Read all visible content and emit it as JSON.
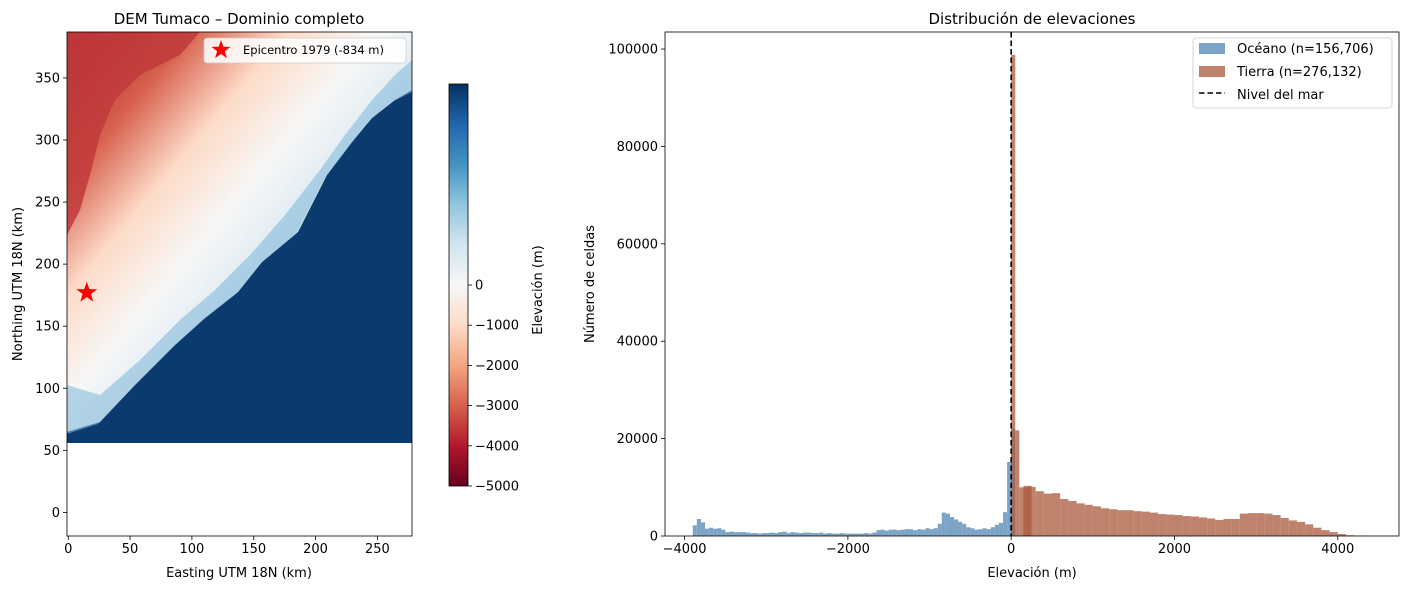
{
  "chart_data": [
    {
      "type": "heatmap",
      "title": "DEM Tumaco – Dominio completo",
      "xlabel": "Easting UTM 18N (km)",
      "ylabel": "Northing UTM 18N (km)",
      "xlim": [
        -1,
        278
      ],
      "ylim": [
        -19,
        387
      ],
      "x_ticks": [
        0,
        50,
        100,
        150,
        200,
        250
      ],
      "y_ticks": [
        0,
        50,
        100,
        150,
        200,
        250,
        300,
        350
      ],
      "data_extent": {
        "ymin": 56
      },
      "marker": {
        "label": "Epicentro 1979 (-834 m)",
        "x": 15,
        "y": 177,
        "color": "#ff0000"
      },
      "colorbar": {
        "label": "Elevación (m)",
        "vmin": -5000,
        "vmax": 5000,
        "ticks": [
          0,
          -1000,
          -2000,
          -3000,
          -4000,
          -5000
        ],
        "colormap": "RdBu",
        "stops": [
          "#67001f",
          "#b2182b",
          "#d6604d",
          "#f4a582",
          "#fddbc7",
          "#f7f7f7",
          "#d1e5f0",
          "#92c5de",
          "#4393c3",
          "#2166ac",
          "#053061"
        ]
      }
    },
    {
      "type": "bar",
      "title": "Distribución de elevaciones",
      "xlabel": "Elevación (m)",
      "ylabel": "Número de celdas",
      "xlim": [
        -4240,
        4750
      ],
      "ylim": [
        0,
        103500
      ],
      "x_ticks": [
        -4000,
        -2000,
        0,
        2000,
        4000
      ],
      "y_ticks": [
        0,
        20000,
        40000,
        60000,
        80000,
        100000
      ],
      "bin_width": 100,
      "vline": {
        "x": 0,
        "label": "Nivel del mar",
        "style": "dashed"
      },
      "series": [
        {
          "name": "Océano (n=156,706)",
          "color": "#5b8db8",
          "bins": [
            [
              -3900,
              2200
            ],
            [
              -3850,
              3500
            ],
            [
              -3800,
              2800
            ],
            [
              -3750,
              1500
            ],
            [
              -3700,
              1700
            ],
            [
              -3650,
              1500
            ],
            [
              -3600,
              1600
            ],
            [
              -3550,
              1300
            ],
            [
              -3500,
              800
            ],
            [
              -3450,
              900
            ],
            [
              -3400,
              800
            ],
            [
              -3350,
              800
            ],
            [
              -3300,
              800
            ],
            [
              -3250,
              700
            ],
            [
              -3200,
              600
            ],
            [
              -3150,
              600
            ],
            [
              -3100,
              500
            ],
            [
              -3050,
              600
            ],
            [
              -3000,
              600
            ],
            [
              -2950,
              700
            ],
            [
              -2900,
              600
            ],
            [
              -2850,
              800
            ],
            [
              -2800,
              900
            ],
            [
              -2750,
              600
            ],
            [
              -2700,
              800
            ],
            [
              -2650,
              700
            ],
            [
              -2600,
              600
            ],
            [
              -2550,
              700
            ],
            [
              -2500,
              700
            ],
            [
              -2450,
              600
            ],
            [
              -2400,
              600
            ],
            [
              -2350,
              700
            ],
            [
              -2300,
              500
            ],
            [
              -2250,
              600
            ],
            [
              -2200,
              500
            ],
            [
              -2150,
              500
            ],
            [
              -2100,
              600
            ],
            [
              -2050,
              500
            ],
            [
              -2000,
              500
            ],
            [
              -1950,
              500
            ],
            [
              -1900,
              500
            ],
            [
              -1850,
              500
            ],
            [
              -1800,
              600
            ],
            [
              -1750,
              500
            ],
            [
              -1700,
              700
            ],
            [
              -1650,
              1200
            ],
            [
              -1600,
              1300
            ],
            [
              -1550,
              1100
            ],
            [
              -1500,
              1300
            ],
            [
              -1450,
              1300
            ],
            [
              -1400,
              1200
            ],
            [
              -1350,
              1300
            ],
            [
              -1300,
              1400
            ],
            [
              -1250,
              1400
            ],
            [
              -1200,
              1200
            ],
            [
              -1150,
              1400
            ],
            [
              -1100,
              1300
            ],
            [
              -1050,
              1600
            ],
            [
              -1000,
              1400
            ],
            [
              -950,
              1600
            ],
            [
              -900,
              2500
            ],
            [
              -850,
              4800
            ],
            [
              -800,
              4600
            ],
            [
              -750,
              3900
            ],
            [
              -700,
              3400
            ],
            [
              -650,
              2900
            ],
            [
              -600,
              2500
            ],
            [
              -550,
              1800
            ],
            [
              -500,
              1600
            ],
            [
              -450,
              1300
            ],
            [
              -400,
              1400
            ],
            [
              -350,
              1600
            ],
            [
              -300,
              1400
            ],
            [
              -250,
              1800
            ],
            [
              -200,
              2300
            ],
            [
              -150,
              2700
            ],
            [
              -100,
              4900
            ],
            [
              -50,
              15200
            ],
            [
              0,
              22000
            ]
          ]
        },
        {
          "name": "Tierra (n=276,132)",
          "color": "#a9583c",
          "bins": [
            [
              0,
              98800
            ],
            [
              50,
              21700
            ],
            [
              100,
              10000
            ],
            [
              150,
              10300
            ],
            [
              200,
              10100
            ],
            [
              300,
              9200
            ],
            [
              400,
              8700
            ],
            [
              500,
              8800
            ],
            [
              600,
              7600
            ],
            [
              700,
              7200
            ],
            [
              800,
              6700
            ],
            [
              900,
              6400
            ],
            [
              1000,
              6100
            ],
            [
              1100,
              5700
            ],
            [
              1200,
              5500
            ],
            [
              1300,
              5300
            ],
            [
              1400,
              5300
            ],
            [
              1500,
              5100
            ],
            [
              1600,
              5000
            ],
            [
              1700,
              4800
            ],
            [
              1800,
              4500
            ],
            [
              1900,
              4400
            ],
            [
              2000,
              4300
            ],
            [
              2100,
              4100
            ],
            [
              2200,
              4000
            ],
            [
              2300,
              3800
            ],
            [
              2400,
              3600
            ],
            [
              2500,
              3300
            ],
            [
              2600,
              3500
            ],
            [
              2700,
              3500
            ],
            [
              2800,
              4600
            ],
            [
              2900,
              4700
            ],
            [
              3000,
              4700
            ],
            [
              3100,
              4600
            ],
            [
              3200,
              4300
            ],
            [
              3300,
              3700
            ],
            [
              3400,
              3200
            ],
            [
              3500,
              2900
            ],
            [
              3600,
              2400
            ],
            [
              3700,
              1700
            ],
            [
              3800,
              1200
            ],
            [
              3900,
              800
            ],
            [
              4000,
              400
            ],
            [
              4100,
              150
            ],
            [
              4200,
              100
            ],
            [
              4300,
              80
            ],
            [
              4400,
              50
            ],
            [
              4500,
              40
            ],
            [
              4600,
              30
            ]
          ]
        }
      ],
      "legend": {
        "placement": "top-right",
        "entries": [
          "Océano (n=156,706)",
          "Tierra (n=276,132)",
          "Nivel del mar"
        ]
      }
    }
  ]
}
